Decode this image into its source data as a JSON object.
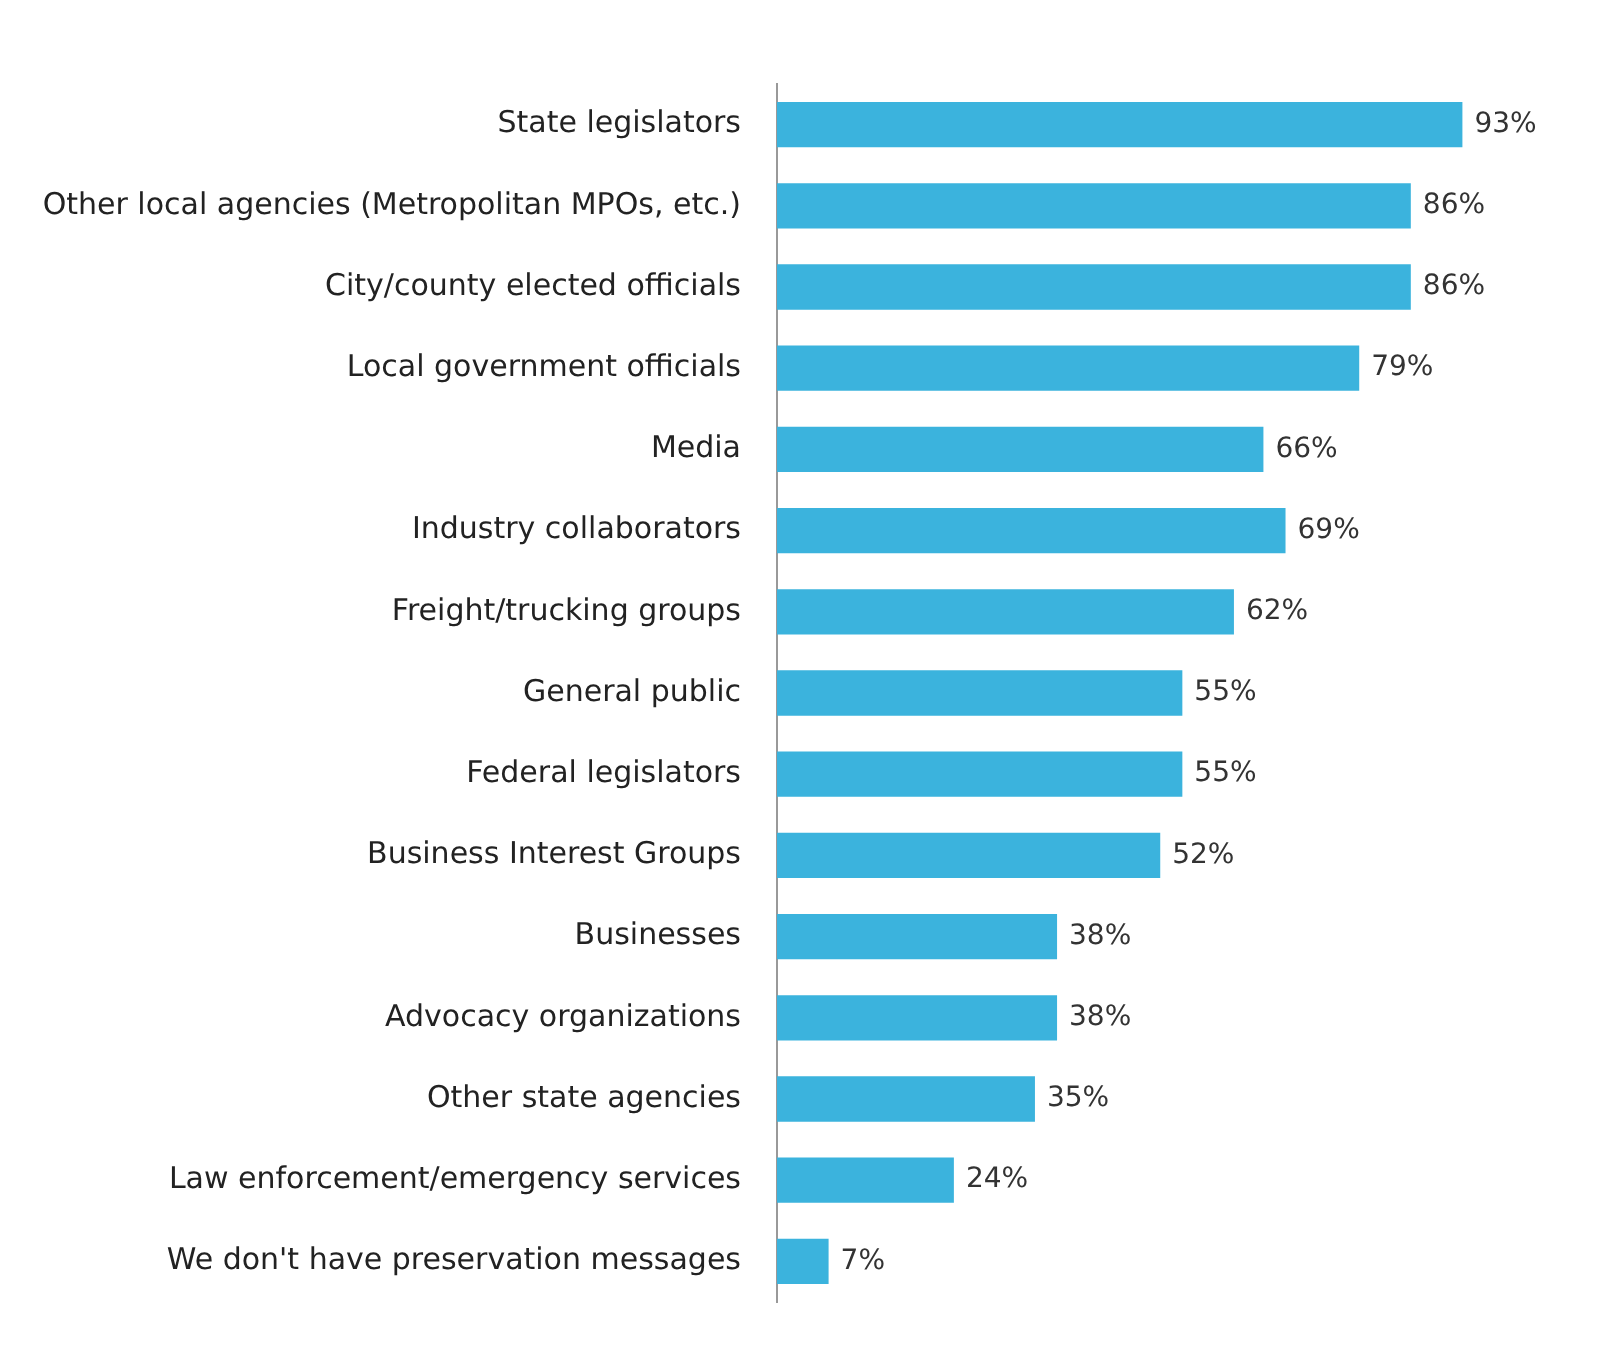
{
  "chart_data": {
    "type": "bar",
    "orientation": "horizontal",
    "categories": [
      "State legislators",
      "Other local agencies (Metropolitan MPOs, etc.)",
      "City/county elected officials",
      "Local government officials",
      "Media",
      "Industry collaborators",
      "Freight/trucking groups",
      "General public",
      "Federal legislators",
      "Business Interest Groups",
      "Businesses",
      "Advocacy organizations",
      "Other state agencies",
      "Law enforcement/emergency services",
      "We don't have preservation messages"
    ],
    "values": [
      93,
      86,
      86,
      79,
      66,
      69,
      62,
      55,
      55,
      52,
      38,
      38,
      35,
      24,
      7
    ],
    "value_labels": [
      "93%",
      "86%",
      "86%",
      "79%",
      "66%",
      "69%",
      "62%",
      "55%",
      "55%",
      "52%",
      "38%",
      "38%",
      "35%",
      "24%",
      "7%"
    ],
    "color": "#3bb3dd",
    "tick_labels": "y",
    "grid": false,
    "legend": false
  }
}
